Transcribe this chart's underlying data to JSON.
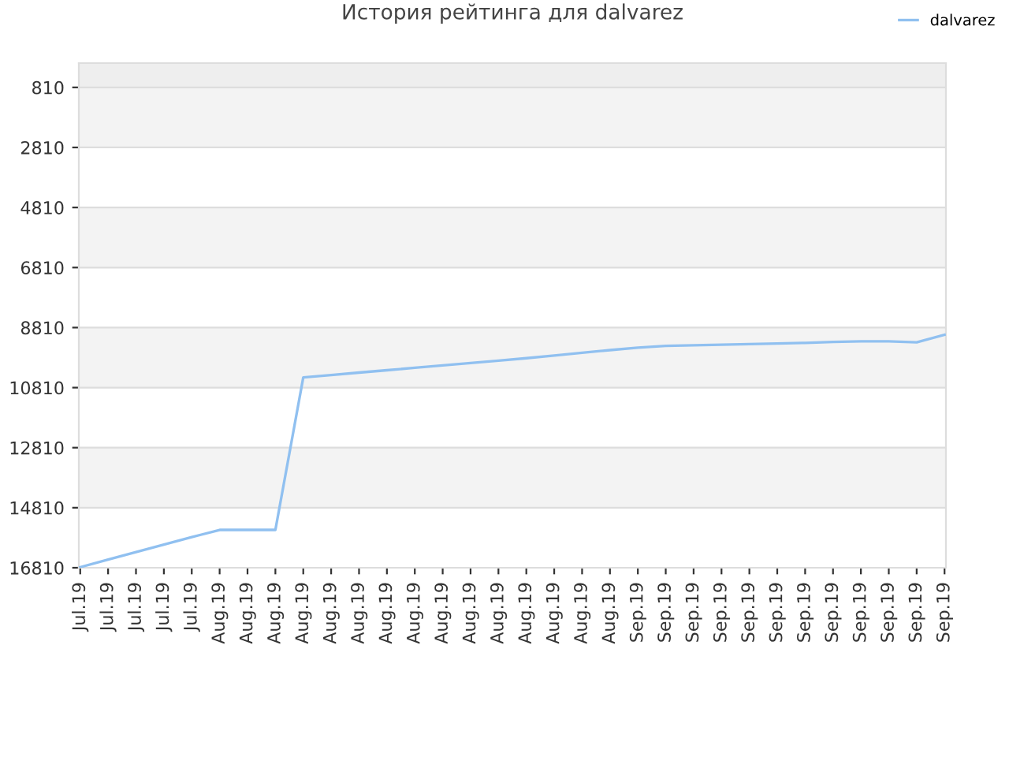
{
  "chart_data": {
    "type": "line",
    "title": "История рейтинга для dalvarez",
    "categories": [
      "Jul.19",
      "Jul.19",
      "Jul.19",
      "Jul.19",
      "Jul.19",
      "Aug.19",
      "Aug.19",
      "Aug.19",
      "Aug.19",
      "Aug.19",
      "Aug.19",
      "Aug.19",
      "Aug.19",
      "Aug.19",
      "Aug.19",
      "Aug.19",
      "Aug.19",
      "Aug.19",
      "Aug.19",
      "Aug.19",
      "Sep.19",
      "Sep.19",
      "Sep.19",
      "Sep.19",
      "Sep.19",
      "Sep.19",
      "Sep.19",
      "Sep.19",
      "Sep.19",
      "Sep.19",
      "Sep.19",
      "Sep.19"
    ],
    "series": [
      {
        "name": "dalvarez",
        "color": "#90c0f0",
        "values": [
          16790,
          16540,
          16290,
          16040,
          15790,
          15550,
          15550,
          15550,
          10470,
          10390,
          10310,
          10230,
          10150,
          10070,
          9990,
          9910,
          9830,
          9740,
          9650,
          9560,
          9480,
          9420,
          9400,
          9380,
          9360,
          9340,
          9320,
          9290,
          9270,
          9270,
          9300,
          9050
        ]
      }
    ],
    "ylim": [
      16810,
      0
    ],
    "yticks": [
      810,
      2810,
      4810,
      6810,
      8810,
      10810,
      12810,
      14810,
      16810
    ],
    "bands": [
      {
        "axis": "y",
        "from": 0,
        "to": 810,
        "color": "#eeeeee"
      },
      {
        "axis": "y",
        "from": 810,
        "to": 2810,
        "color": "#f3f3f3"
      },
      {
        "axis": "y",
        "from": 4810,
        "to": 6810,
        "color": "#f3f3f3"
      },
      {
        "axis": "y",
        "from": 8810,
        "to": 10810,
        "color": "#f3f3f3"
      },
      {
        "axis": "y",
        "from": 12810,
        "to": 14810,
        "color": "#f3f3f3"
      }
    ],
    "grid": "y",
    "legend": "top right",
    "marker": "none",
    "line_style": "solid"
  }
}
